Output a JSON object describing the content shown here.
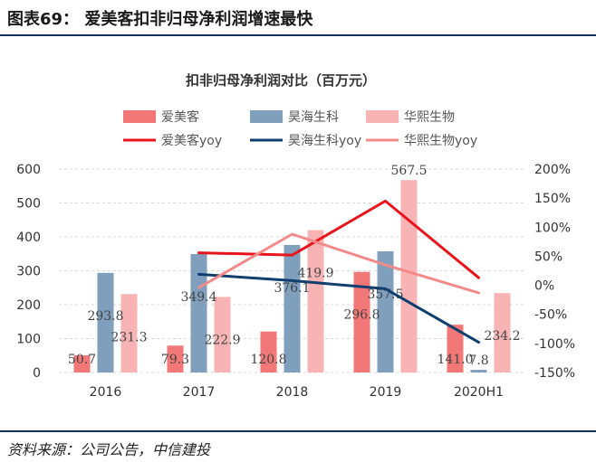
{
  "header": {
    "title": "图表69： 爱美客扣非归母净利润增速最快"
  },
  "source": "资料来源：公司公告，中信建投",
  "chart_data": {
    "type": "bar+line",
    "title": "扣非归母净利润对比（百万元）",
    "categories": [
      "2016",
      "2017",
      "2018",
      "2019",
      "2020H1"
    ],
    "y_left": {
      "ylim": [
        0,
        600
      ],
      "ticks": [
        "0",
        "100",
        "200",
        "300",
        "400",
        "500",
        "600"
      ]
    },
    "y_right": {
      "ylim": [
        -150,
        200
      ],
      "ticks": [
        "-150%",
        "-100%",
        "-50%",
        "0%",
        "50%",
        "100%",
        "150%",
        "200%"
      ]
    },
    "series": [
      {
        "name": "爱美客",
        "kind": "bar",
        "axis": "left",
        "color": "#f27777",
        "values": [
          50.7,
          79.3,
          120.8,
          296.8,
          141.0
        ],
        "labels": [
          "50.7",
          "79.3",
          "120.8",
          "296.8",
          "141.0"
        ]
      },
      {
        "name": "昊海生科",
        "kind": "bar",
        "axis": "left",
        "color": "#7f9fbd",
        "values": [
          293.8,
          349.4,
          376.1,
          357.5,
          7.8
        ],
        "labels": [
          "293.8",
          "349.4",
          "376.1",
          "357.5",
          "7.8"
        ]
      },
      {
        "name": "华熙生物",
        "kind": "bar",
        "axis": "left",
        "color": "#f8b4b4",
        "values": [
          231.3,
          222.9,
          419.9,
          567.5,
          234.2
        ],
        "labels": [
          "231.3",
          "222.9",
          "419.9",
          "567.5",
          "234.2"
        ]
      },
      {
        "name": "爱美客yoy",
        "kind": "line",
        "axis": "right",
        "color": "#e8141b",
        "values": [
          null,
          56,
          52,
          145,
          13
        ]
      },
      {
        "name": "昊海生科yoy",
        "kind": "line",
        "axis": "right",
        "color": "#0f3f6e",
        "values": [
          null,
          19,
          8,
          -6,
          -98
        ]
      },
      {
        "name": "华熙生物yoy",
        "kind": "line",
        "axis": "right",
        "color": "#f38a8a",
        "values": [
          null,
          -4,
          88,
          35,
          -13
        ]
      }
    ],
    "grid": true,
    "legend": "top"
  }
}
